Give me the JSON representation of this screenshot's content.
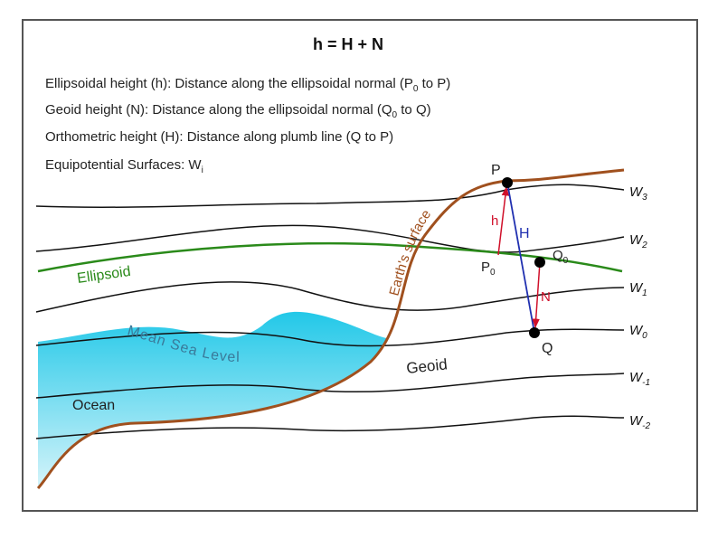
{
  "title": "h = H + N",
  "definitions": [
    {
      "text": "Ellipsoidal height (h): Distance along the ellipsoidal normal (P",
      "sub": "0",
      "tail": " to P)"
    },
    {
      "text": "Geoid height (N): Distance along the ellipsoidal normal (Q",
      "sub": "0",
      "tail": " to Q)"
    },
    {
      "text": "Orthometric height (H): Distance along plumb line (Q to P)"
    },
    {
      "text": "Equipotential Surfaces: W",
      "sub": "i"
    }
  ],
  "surfaces": [
    {
      "name": "W",
      "sub": "3"
    },
    {
      "name": "W",
      "sub": "2"
    },
    {
      "name": "W",
      "sub": "1"
    },
    {
      "name": "W",
      "sub": "0"
    },
    {
      "name": "W",
      "sub": "-1"
    },
    {
      "name": "W",
      "sub": "-2"
    }
  ],
  "points": {
    "p": "P",
    "p0": {
      "name": "P",
      "sub": "0"
    },
    "q": "Q",
    "q0": {
      "name": "Q",
      "sub": "0"
    }
  },
  "segments": {
    "h": "h",
    "H": "H",
    "N": "N"
  },
  "labels": {
    "earth_surface": "Earth's surface",
    "ellipsoid": "Ellipsoid",
    "msl": "Mean Sea Level",
    "geoid": "Geoid",
    "ocean": "Ocean"
  }
}
